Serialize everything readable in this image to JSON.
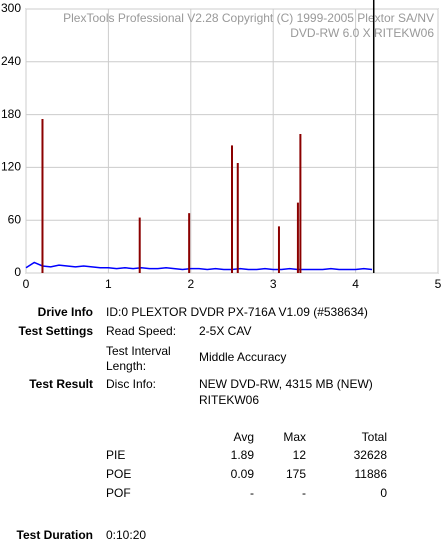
{
  "chart_data": {
    "type": "line",
    "header": [
      "PlexTools Professional V2.28 Copyright (C) 1999-2005 Plextor SA/NV",
      "DVD-RW   6.0 X   RITEKW06"
    ],
    "xlim": [
      0,
      5
    ],
    "xticks": [
      0,
      1,
      2,
      3,
      4,
      5
    ],
    "ylim": [
      0,
      300
    ],
    "yticks": [
      0,
      60,
      120,
      180,
      240,
      300
    ],
    "grid": true,
    "disc_end": 4.22,
    "series": [
      {
        "name": "PIE",
        "color": "#0000ff",
        "style": "line",
        "x": [
          0,
          0.1,
          0.2,
          0.3,
          0.4,
          0.5,
          0.6,
          0.7,
          0.8,
          0.9,
          1,
          1.1,
          1.2,
          1.3,
          1.4,
          1.5,
          1.6,
          1.7,
          1.8,
          1.9,
          2,
          2.1,
          2.2,
          2.3,
          2.4,
          2.5,
          2.6,
          2.7,
          2.8,
          2.9,
          3,
          3.1,
          3.2,
          3.3,
          3.4,
          3.5,
          3.6,
          3.7,
          3.8,
          3.9,
          4,
          4.1,
          4.2
        ],
        "values": [
          6,
          12,
          8,
          7,
          9,
          8,
          7,
          8,
          7,
          6,
          6,
          5,
          6,
          5,
          6,
          5,
          5,
          6,
          5,
          4,
          5,
          5,
          4,
          5,
          4,
          4,
          5,
          4,
          4,
          5,
          4,
          4,
          5,
          4,
          4,
          4,
          4,
          5,
          4,
          4,
          4,
          5,
          4
        ]
      },
      {
        "name": "POE",
        "color": "#8b0000",
        "style": "spikes",
        "x": [
          0.2,
          1.38,
          1.98,
          2.5,
          2.57,
          3.07,
          3.3,
          3.33
        ],
        "values": [
          175,
          63,
          68,
          145,
          125,
          53,
          80,
          158
        ]
      }
    ]
  },
  "info": {
    "drive_label": "Drive Info",
    "drive_value": "ID:0 PLEXTOR DVDR PX-716A V1.09 (#538634)",
    "settings_label": "Test Settings",
    "speed_label": "Read Speed:",
    "speed_value": "2-5X CAV",
    "interval_label": [
      "Test Interval",
      "Length:"
    ],
    "interval_value": "Middle Accuracy",
    "result_label": "Test Result",
    "disc_label": "Disc Info:",
    "disc_value": [
      "NEW DVD-RW, 4315 MB (NEW)",
      "RITEKW06"
    ],
    "stats_header": [
      "Avg",
      "Max",
      "Total"
    ],
    "stats": [
      [
        "PIE",
        "1.89",
        "12",
        "32628"
      ],
      [
        "POE",
        "0.09",
        "175",
        "11886"
      ],
      [
        "POF",
        "-",
        "-",
        "0"
      ]
    ],
    "duration_label": "Test Duration",
    "duration_value": "0:10:20"
  }
}
